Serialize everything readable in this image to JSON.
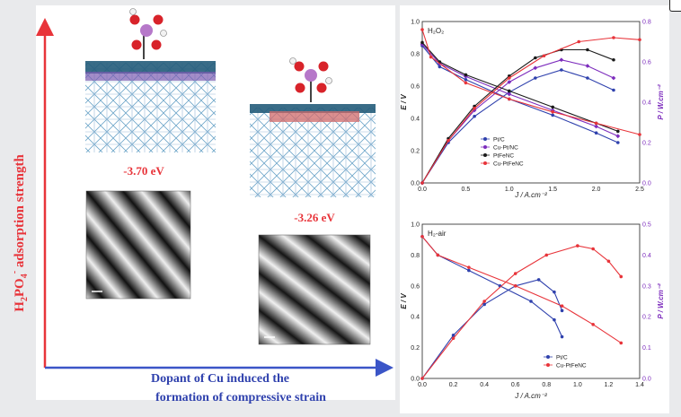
{
  "left_panel": {
    "y_axis_label_parts": {
      "pre": "H",
      "sub1": "2",
      "mid": "PO",
      "sub2": "4",
      "sup": "-",
      "post": " adsorption strength"
    },
    "x_axis_label_line1": "Dopant of Cu induced the",
    "x_axis_label_line2": "formation of compressive strain",
    "energy_a": "-3.70 eV",
    "energy_b": "-3.26 eV"
  },
  "colors": {
    "red": "#e8343a",
    "blue": "#2f41ad",
    "black": "#1a1a1a",
    "purple": "#7d2dbd",
    "axis_blue": "#3b55c7"
  },
  "chart_data": [
    {
      "type": "line",
      "title": "H₂O₂",
      "xlabel": "J / A.cm⁻²",
      "ylabel": "E / V",
      "y2label": "P / W.cm⁻²",
      "xlim": [
        0,
        2.5
      ],
      "ylim": [
        0,
        1.0
      ],
      "y2lim": [
        0,
        0.8
      ],
      "xticks": [
        "0.0",
        "0.5",
        "1.0",
        "1.5",
        "2.0",
        "2.5"
      ],
      "yticks": [
        "0.0",
        "0.2",
        "0.4",
        "0.6",
        "0.8",
        "1.0"
      ],
      "y2ticks": [
        "0.0",
        "0.2",
        "0.4",
        "0.6",
        "0.8"
      ],
      "legend": [
        "Pt/C",
        "Cu-Pt/NC",
        "PtFeNC",
        "Cu-PtFeNC"
      ],
      "legend_placement": "bottom-left",
      "series": [
        {
          "name": "Pt/C",
          "color": "#2f41ad",
          "marker": "circle",
          "E": [
            [
              0,
              0.85
            ],
            [
              0.2,
              0.72
            ],
            [
              0.5,
              0.64
            ],
            [
              1.0,
              0.52
            ],
            [
              1.5,
              0.42
            ],
            [
              2.0,
              0.31
            ],
            [
              2.25,
              0.25
            ]
          ],
          "P": [
            [
              0,
              0
            ],
            [
              0.3,
              0.2
            ],
            [
              0.6,
              0.33
            ],
            [
              1.0,
              0.45
            ],
            [
              1.3,
              0.52
            ],
            [
              1.6,
              0.56
            ],
            [
              1.9,
              0.52
            ],
            [
              2.2,
              0.46
            ]
          ]
        },
        {
          "name": "Cu-Pt/NC",
          "color": "#7d2dbd",
          "marker": "diamond",
          "E": [
            [
              0,
              0.86
            ],
            [
              0.2,
              0.74
            ],
            [
              0.5,
              0.66
            ],
            [
              1.0,
              0.55
            ],
            [
              1.5,
              0.45
            ],
            [
              2.0,
              0.35
            ],
            [
              2.25,
              0.29
            ]
          ],
          "P": [
            [
              0,
              0
            ],
            [
              0.3,
              0.21
            ],
            [
              0.6,
              0.36
            ],
            [
              1.0,
              0.5
            ],
            [
              1.3,
              0.57
            ],
            [
              1.6,
              0.61
            ],
            [
              1.9,
              0.58
            ],
            [
              2.2,
              0.52
            ]
          ]
        },
        {
          "name": "PtFeNC",
          "color": "#1a1a1a",
          "marker": "circle",
          "E": [
            [
              0,
              0.87
            ],
            [
              0.2,
              0.75
            ],
            [
              0.5,
              0.67
            ],
            [
              1.0,
              0.57
            ],
            [
              1.5,
              0.47
            ],
            [
              2.0,
              0.37
            ],
            [
              2.25,
              0.32
            ]
          ],
          "P": [
            [
              0,
              0
            ],
            [
              0.3,
              0.22
            ],
            [
              0.6,
              0.38
            ],
            [
              1.0,
              0.53
            ],
            [
              1.3,
              0.62
            ],
            [
              1.6,
              0.66
            ],
            [
              1.9,
              0.66
            ],
            [
              2.2,
              0.61
            ]
          ]
        },
        {
          "name": "Cu-PtFeNC",
          "color": "#e8343a",
          "marker": "circle",
          "E": [
            [
              0,
              0.95
            ],
            [
              0.1,
              0.78
            ],
            [
              0.5,
              0.62
            ],
            [
              1.0,
              0.52
            ],
            [
              1.5,
              0.44
            ],
            [
              2.0,
              0.37
            ],
            [
              2.5,
              0.3
            ]
          ],
          "P": [
            [
              0,
              0
            ],
            [
              0.3,
              0.21
            ],
            [
              0.6,
              0.37
            ],
            [
              1.0,
              0.52
            ],
            [
              1.4,
              0.63
            ],
            [
              1.8,
              0.7
            ],
            [
              2.2,
              0.72
            ],
            [
              2.5,
              0.71
            ]
          ]
        }
      ]
    },
    {
      "type": "line",
      "title": "H₂-air",
      "xlabel": "J / A.cm⁻²",
      "ylabel": "E / V",
      "y2label": "P / W.cm⁻²",
      "xlim": [
        0,
        1.4
      ],
      "ylim": [
        0,
        1.0
      ],
      "y2lim": [
        0,
        0.5
      ],
      "xticks": [
        "0.0",
        "0.2",
        "0.4",
        "0.6",
        "0.8",
        "1.0",
        "1.2",
        "1.4"
      ],
      "yticks": [
        "0.0",
        "0.2",
        "0.4",
        "0.6",
        "0.8",
        "1.0"
      ],
      "y2ticks": [
        "0.0",
        "0.1",
        "0.2",
        "0.3",
        "0.4",
        "0.5"
      ],
      "legend": [
        "Pt/C",
        "Cu-PtFeNC"
      ],
      "legend_placement": "bottom-center",
      "series": [
        {
          "name": "Pt/C",
          "color": "#2f41ad",
          "marker": "circle",
          "E": [
            [
              0,
              0.92
            ],
            [
              0.1,
              0.8
            ],
            [
              0.3,
              0.7
            ],
            [
              0.5,
              0.6
            ],
            [
              0.7,
              0.5
            ],
            [
              0.85,
              0.38
            ],
            [
              0.9,
              0.27
            ]
          ],
          "P": [
            [
              0,
              0
            ],
            [
              0.2,
              0.14
            ],
            [
              0.4,
              0.24
            ],
            [
              0.6,
              0.3
            ],
            [
              0.75,
              0.32
            ],
            [
              0.85,
              0.28
            ],
            [
              0.9,
              0.22
            ]
          ]
        },
        {
          "name": "Cu-PtFeNC",
          "color": "#e8343a",
          "marker": "circle",
          "E": [
            [
              0,
              0.92
            ],
            [
              0.1,
              0.8
            ],
            [
              0.3,
              0.72
            ],
            [
              0.6,
              0.6
            ],
            [
              0.9,
              0.47
            ],
            [
              1.1,
              0.35
            ],
            [
              1.28,
              0.23
            ]
          ],
          "P": [
            [
              0,
              0
            ],
            [
              0.2,
              0.13
            ],
            [
              0.4,
              0.25
            ],
            [
              0.6,
              0.34
            ],
            [
              0.8,
              0.4
            ],
            [
              1.0,
              0.43
            ],
            [
              1.1,
              0.42
            ],
            [
              1.2,
              0.38
            ],
            [
              1.28,
              0.33
            ]
          ]
        }
      ]
    }
  ]
}
